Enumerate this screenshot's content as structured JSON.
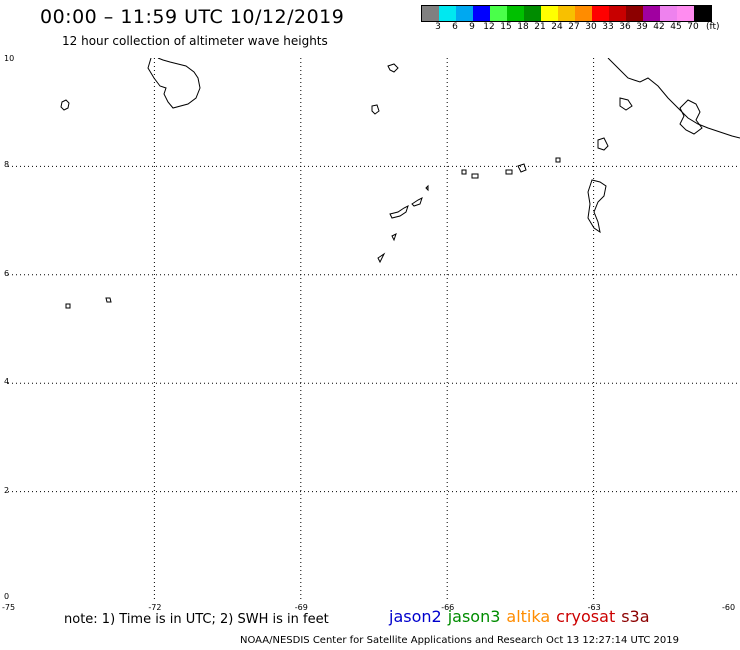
{
  "header": {
    "title": "00:00 – 11:59 UTC 10/12/2019",
    "subtitle": "12 hour collection of altimeter wave heights"
  },
  "color_scale": {
    "colors": [
      "#808080",
      "#00e8f0",
      "#00a8f0",
      "#0000ff",
      "#4aff4a",
      "#00c000",
      "#008c00",
      "#ffff00",
      "#f8c000",
      "#ff8c00",
      "#ff0000",
      "#c80000",
      "#8c0000",
      "#a000a0",
      "#ee82ee",
      "#ff8cf0",
      "#000000"
    ],
    "labels": [
      "3",
      "6",
      "9",
      "12",
      "15",
      "18",
      "21",
      "24",
      "27",
      "30",
      "33",
      "36",
      "39",
      "42",
      "45",
      "70"
    ],
    "unit": "(ft)"
  },
  "map": {
    "lon_min": -75,
    "lon_max": -60,
    "lat_min": 0,
    "lat_max": 10,
    "x_ticks": [
      "-75",
      "-72",
      "-69",
      "-66",
      "-63",
      "-60"
    ],
    "y_ticks": [
      "10",
      "8",
      "6",
      "4",
      "2",
      "0"
    ],
    "grid_lons": [
      -72,
      -69,
      -66,
      -63
    ],
    "grid_lats": [
      8,
      6,
      4,
      2
    ],
    "grid_style": "dotted",
    "coastline_color": "#000000"
  },
  "footer": {
    "note": "note: 1) Time is in UTC; 2) SWH is in feet",
    "satellites": [
      {
        "name": "jason2",
        "color": "#0000cc"
      },
      {
        "name": "jason3",
        "color": "#008c00"
      },
      {
        "name": "altika",
        "color": "#ff8c00"
      },
      {
        "name": "cryosat",
        "color": "#cc0000"
      },
      {
        "name": "s3a",
        "color": "#8c0000"
      }
    ],
    "credit": "NOAA/NESDIS Center for Satellite Applications and Research    Oct 13 12:27:14 UTC 2019"
  }
}
